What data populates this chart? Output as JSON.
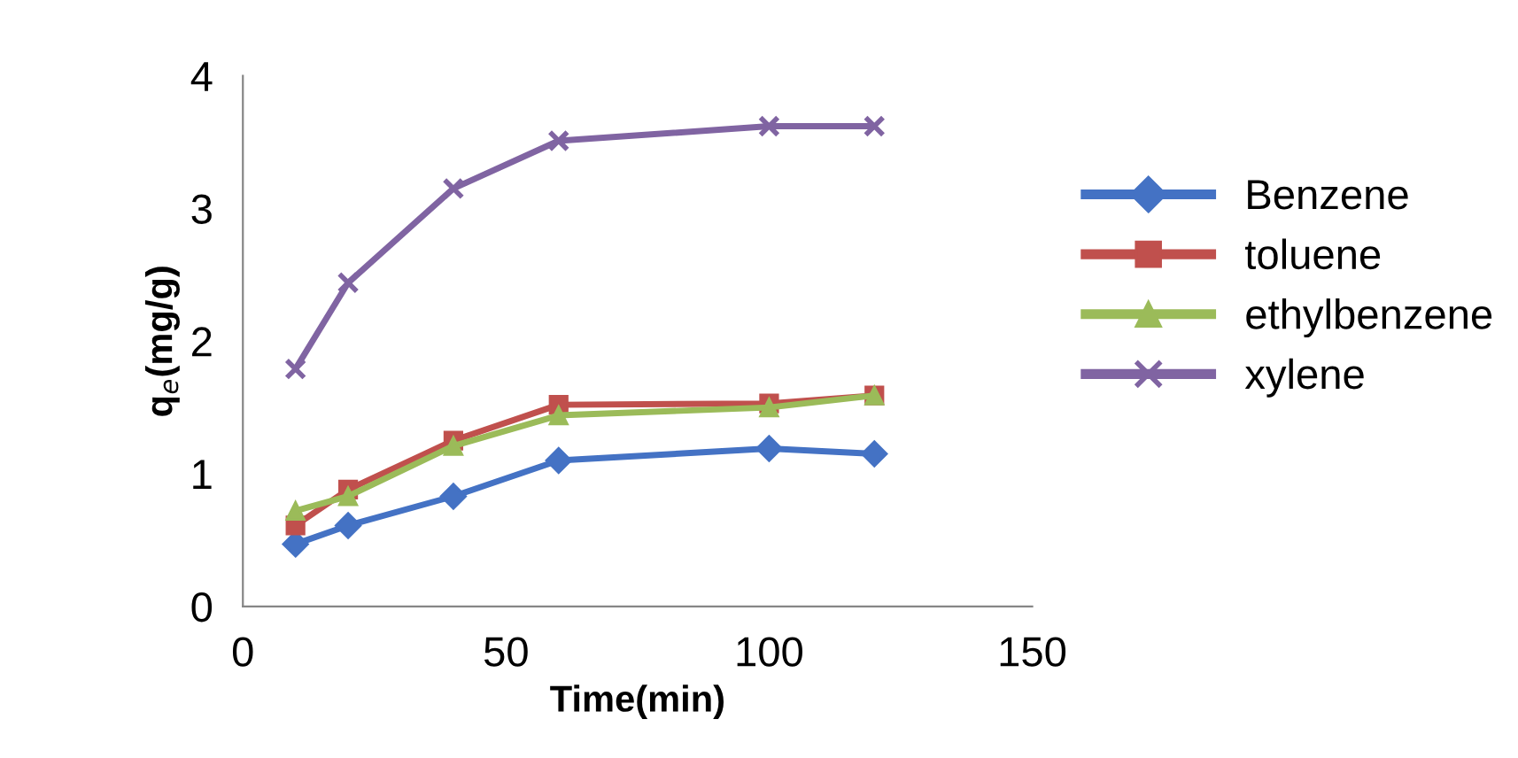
{
  "chart_data": {
    "type": "line",
    "xlabel": "Time(min)",
    "ylabel": "q$_{e}$(mg/g)",
    "x": [
      10,
      20,
      40,
      60,
      100,
      120
    ],
    "series": [
      {
        "name": "Benzene",
        "color": "#4472c4",
        "marker": "diamond",
        "values": [
          0.47,
          0.61,
          0.83,
          1.1,
          1.19,
          1.15
        ]
      },
      {
        "name": "toluene",
        "color": "#c0504d",
        "marker": "square",
        "values": [
          0.61,
          0.88,
          1.25,
          1.52,
          1.53,
          1.59
        ]
      },
      {
        "name": "ethylbenzene",
        "color": "#9bbb59",
        "marker": "triangle",
        "values": [
          0.72,
          0.83,
          1.21,
          1.44,
          1.5,
          1.59
        ]
      },
      {
        "name": "xylene",
        "color": "#8064a2",
        "marker": "cross",
        "values": [
          1.79,
          2.44,
          3.15,
          3.51,
          3.62,
          3.62
        ]
      }
    ],
    "xlim": [
      0,
      150
    ],
    "xticks": [
      0,
      50,
      100,
      150
    ],
    "ylim": [
      0,
      4
    ],
    "yticks": [
      0,
      1,
      2,
      3,
      4
    ],
    "grid": false,
    "legend": "right"
  }
}
